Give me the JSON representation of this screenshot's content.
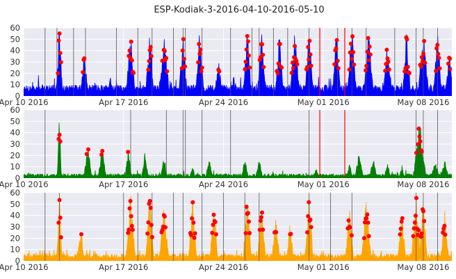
{
  "title": "ESP-Kodiak-3-2016-04-10-2016-05-10",
  "chart_data": {
    "type": "line",
    "title": "ESP-Kodiak-3-2016-04-10-2016-05-10",
    "x_range": [
      "2016-04-10",
      "2016-05-10"
    ],
    "x_tick_labels": [
      "Apr 10 2016",
      "Apr 17 2016",
      "Apr 24 2016",
      "May 01 2016",
      "May 08 2016"
    ],
    "grid": true,
    "background": "#EAEAF2",
    "outlier_color": "#FF0000",
    "outlier_threshold": 20,
    "panels": [
      {
        "series_name": "",
        "color": "#0000FF",
        "ylim": [
          0,
          60
        ],
        "y_ticks": [
          "0",
          "10",
          "20",
          "30",
          "40",
          "50",
          "60"
        ],
        "baseline": 8,
        "events_gray": [
          "2016-04-11 12:00",
          "2016-04-12 08:00",
          "2016-04-13 12:00",
          "2016-04-14 08:00",
          "2016-04-16 12:00",
          "2016-04-18 00:00",
          "2016-04-19 00:00",
          "2016-04-20 12:00",
          "2016-04-21 04:00",
          "2016-04-21 08:00",
          "2016-04-22 12:00",
          "2016-04-24 12:00",
          "2016-04-26 00:00",
          "2016-04-26 12:00",
          "2016-04-27 12:00",
          "2016-04-28 12:00",
          "2016-04-30 00:00",
          "2016-05-02 00:00",
          "2016-05-03 00:00",
          "2016-05-04 00:00",
          "2016-05-06 00:00",
          "2016-05-07 12:00",
          "2016-05-08 00:00",
          "2016-05-09 00:00"
        ],
        "events_red": [
          "2016-04-30 18:00",
          "2016-05-02 12:00"
        ],
        "peaks": [
          {
            "t": "2016-04-12 12:00",
            "v": 60,
            "w": 0.25
          },
          {
            "t": "2016-04-14 06:00",
            "v": 38,
            "w": 0.3
          },
          {
            "t": "2016-04-16 02:00",
            "v": 20,
            "w": 0.2
          },
          {
            "t": "2016-04-17 12:00",
            "v": 60,
            "w": 0.35
          },
          {
            "t": "2016-04-18 20:00",
            "v": 60,
            "w": 0.3
          },
          {
            "t": "2016-04-19 20:00",
            "v": 60,
            "w": 0.4
          },
          {
            "t": "2016-04-21 04:00",
            "v": 60,
            "w": 0.3
          },
          {
            "t": "2016-04-22 08:00",
            "v": 60,
            "w": 0.3
          },
          {
            "t": "2016-04-23 16:00",
            "v": 32,
            "w": 0.3
          },
          {
            "t": "2016-04-25 16:00",
            "v": 60,
            "w": 0.3
          },
          {
            "t": "2016-04-26 16:00",
            "v": 60,
            "w": 0.3
          },
          {
            "t": "2016-04-27 22:00",
            "v": 60,
            "w": 0.3
          },
          {
            "t": "2016-04-29 00:00",
            "v": 60,
            "w": 0.35
          },
          {
            "t": "2016-04-30 00:00",
            "v": 60,
            "w": 0.3
          },
          {
            "t": "2016-05-01 22:00",
            "v": 60,
            "w": 0.3
          },
          {
            "t": "2016-05-03 00:00",
            "v": 60,
            "w": 0.35
          },
          {
            "t": "2016-05-04 04:00",
            "v": 60,
            "w": 0.35
          },
          {
            "t": "2016-05-05 12:00",
            "v": 60,
            "w": 0.3
          },
          {
            "t": "2016-05-06 20:00",
            "v": 60,
            "w": 0.3
          },
          {
            "t": "2016-05-08 00:00",
            "v": 60,
            "w": 0.4
          },
          {
            "t": "2016-05-09 00:00",
            "v": 60,
            "w": 0.3
          },
          {
            "t": "2016-05-09 20:00",
            "v": 40,
            "w": 0.3
          }
        ]
      },
      {
        "series_name": "",
        "color": "#008000",
        "ylim": [
          0,
          60
        ],
        "y_ticks": [
          "0",
          "10",
          "20",
          "30",
          "40",
          "50",
          "60"
        ],
        "baseline": 3,
        "events_gray": [
          "2016-04-11 12:00",
          "2016-04-17 12:00",
          "2016-04-20 00:00",
          "2016-04-21 04:00",
          "2016-04-21 08:00",
          "2016-04-22 12:00",
          "2016-04-24 12:00",
          "2016-04-30 00:00",
          "2016-05-07 12:00",
          "2016-05-08 00:00",
          "2016-05-09 00:00"
        ],
        "events_red": [
          "2016-04-30 18:00",
          "2016-05-02 12:00"
        ],
        "peaks": [
          {
            "t": "2016-04-12 12:00",
            "v": 60,
            "w": 0.15
          },
          {
            "t": "2016-04-14 12:00",
            "v": 30,
            "w": 0.3
          },
          {
            "t": "2016-04-15 12:00",
            "v": 28,
            "w": 0.3
          },
          {
            "t": "2016-04-17 08:00",
            "v": 26,
            "w": 0.25
          },
          {
            "t": "2016-04-18 12:00",
            "v": 24,
            "w": 0.25
          },
          {
            "t": "2016-04-19 20:00",
            "v": 20,
            "w": 0.25
          },
          {
            "t": "2016-04-21 20:00",
            "v": 12,
            "w": 0.2
          },
          {
            "t": "2016-04-23 00:00",
            "v": 18,
            "w": 0.25
          },
          {
            "t": "2016-04-25 12:00",
            "v": 18,
            "w": 0.25
          },
          {
            "t": "2016-04-26 12:00",
            "v": 18,
            "w": 0.25
          },
          {
            "t": "2016-04-30 12:00",
            "v": 10,
            "w": 0.2
          },
          {
            "t": "2016-05-02 20:00",
            "v": 14,
            "w": 0.2
          },
          {
            "t": "2016-05-03 12:00",
            "v": 25,
            "w": 0.3
          },
          {
            "t": "2016-05-04 12:00",
            "v": 18,
            "w": 0.3
          },
          {
            "t": "2016-05-05 12:00",
            "v": 15,
            "w": 0.25
          },
          {
            "t": "2016-05-06 12:00",
            "v": 12,
            "w": 0.2
          },
          {
            "t": "2016-05-07 18:00",
            "v": 55,
            "w": 0.45
          },
          {
            "t": "2016-05-08 20:00",
            "v": 18,
            "w": 0.3
          },
          {
            "t": "2016-05-09 12:00",
            "v": 16,
            "w": 0.3
          }
        ]
      },
      {
        "series_name": "",
        "color": "#FFA500",
        "ylim": [
          0,
          60
        ],
        "y_ticks": [
          "0",
          "10",
          "20",
          "30",
          "40",
          "50",
          "60"
        ],
        "baseline": 5,
        "events_gray": [
          "2016-04-11 12:00",
          "2016-04-12 12:00",
          "2016-04-17 00:00",
          "2016-04-18 00:00",
          "2016-04-19 00:00",
          "2016-04-20 12:00",
          "2016-04-21 04:00",
          "2016-04-22 12:00",
          "2016-04-24 00:00",
          "2016-04-25 12:00",
          "2016-04-26 12:00",
          "2016-04-30 00:00",
          "2016-05-01 12:00",
          "2016-05-03 00:00",
          "2016-05-07 12:00",
          "2016-05-08 00:00",
          "2016-05-09 00:00"
        ],
        "events_red": [],
        "peaks": [
          {
            "t": "2016-04-12 12:00",
            "v": 60,
            "w": 0.2
          },
          {
            "t": "2016-04-14 00:00",
            "v": 32,
            "w": 0.25
          },
          {
            "t": "2016-04-17 12:00",
            "v": 60,
            "w": 0.35
          },
          {
            "t": "2016-04-18 20:00",
            "v": 60,
            "w": 0.3
          },
          {
            "t": "2016-04-19 20:00",
            "v": 55,
            "w": 0.35
          },
          {
            "t": "2016-04-21 20:00",
            "v": 60,
            "w": 0.3
          },
          {
            "t": "2016-04-23 08:00",
            "v": 52,
            "w": 0.3
          },
          {
            "t": "2016-04-25 16:00",
            "v": 60,
            "w": 0.3
          },
          {
            "t": "2016-04-26 16:00",
            "v": 50,
            "w": 0.3
          },
          {
            "t": "2016-04-27 16:00",
            "v": 40,
            "w": 0.3
          },
          {
            "t": "2016-04-28 16:00",
            "v": 38,
            "w": 0.25
          },
          {
            "t": "2016-04-30 00:00",
            "v": 60,
            "w": 0.3
          },
          {
            "t": "2016-05-02 20:00",
            "v": 50,
            "w": 0.3
          },
          {
            "t": "2016-05-04 00:00",
            "v": 60,
            "w": 0.35
          },
          {
            "t": "2016-05-06 12:00",
            "v": 45,
            "w": 0.3
          },
          {
            "t": "2016-05-07 12:00",
            "v": 60,
            "w": 0.35
          },
          {
            "t": "2016-05-08 00:00",
            "v": 55,
            "w": 0.3
          },
          {
            "t": "2016-05-09 12:00",
            "v": 45,
            "w": 0.3
          }
        ]
      }
    ]
  }
}
